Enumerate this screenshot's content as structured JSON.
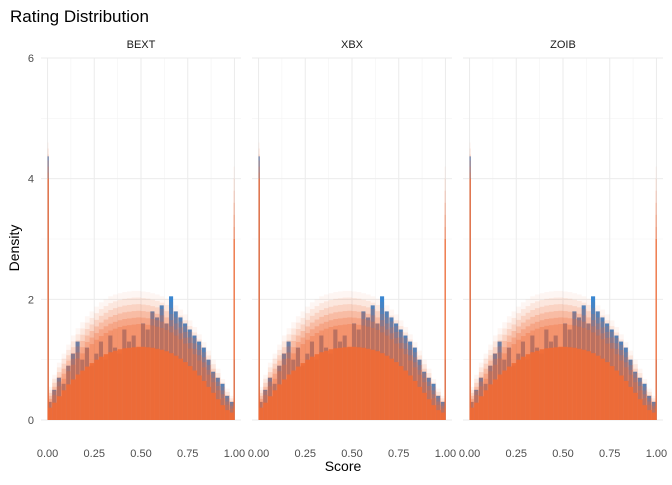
{
  "chart_data": {
    "type": "bar",
    "title": "Rating Distribution",
    "xlabel": "Score",
    "ylabel": "Density",
    "xlim": [
      0,
      1
    ],
    "ylim": [
      0,
      6
    ],
    "x_ticks": [
      "0.00",
      "0.25",
      "0.50",
      "0.75",
      "1.00"
    ],
    "y_ticks": [
      "0",
      "2",
      "4",
      "6"
    ],
    "grid": true,
    "colors": {
      "observed": "#3A86D0",
      "predicted": "#F06A35",
      "predicted_light": "#FFD9C7"
    },
    "panels": [
      {
        "name": "BEXT"
      },
      {
        "name": "XBX"
      },
      {
        "name": "ZOIB"
      }
    ],
    "observed_series": {
      "bin_centers": [
        0.0025,
        0.0125,
        0.0375,
        0.0625,
        0.0875,
        0.1125,
        0.1375,
        0.1625,
        0.1875,
        0.2125,
        0.2375,
        0.2625,
        0.2875,
        0.3125,
        0.3375,
        0.3625,
        0.3875,
        0.4125,
        0.4375,
        0.4625,
        0.4875,
        0.5125,
        0.5375,
        0.5625,
        0.5875,
        0.6125,
        0.6375,
        0.6625,
        0.6875,
        0.7125,
        0.7375,
        0.7625,
        0.7875,
        0.8125,
        0.8375,
        0.8625,
        0.8875,
        0.9125,
        0.9375,
        0.9625,
        0.9875,
        0.9975
      ],
      "density": [
        4.37,
        0.3,
        0.5,
        0.7,
        0.6,
        0.9,
        1.1,
        1.3,
        1.0,
        1.2,
        0.9,
        1.1,
        1.3,
        1.0,
        1.4,
        1.2,
        1.1,
        1.5,
        1.3,
        1.4,
        1.2,
        1.6,
        1.5,
        1.8,
        1.7,
        1.9,
        1.6,
        2.05,
        1.8,
        1.7,
        1.6,
        1.5,
        1.4,
        1.3,
        1.2,
        1.0,
        0.8,
        0.7,
        0.6,
        0.4,
        0.3,
        1.0
      ]
    },
    "predicted_series": {
      "bin_centers": [
        0.0025,
        0.0125,
        0.0375,
        0.0625,
        0.0875,
        0.1125,
        0.1375,
        0.1625,
        0.1875,
        0.2125,
        0.2375,
        0.2625,
        0.2875,
        0.3125,
        0.3375,
        0.3625,
        0.3875,
        0.4125,
        0.4375,
        0.4625,
        0.4875,
        0.5125,
        0.5375,
        0.5625,
        0.5875,
        0.6125,
        0.6375,
        0.6625,
        0.6875,
        0.7125,
        0.7375,
        0.7625,
        0.7875,
        0.8125,
        0.8375,
        0.8625,
        0.8875,
        0.9125,
        0.9375,
        0.9625,
        0.9875,
        0.9975
      ],
      "density_median": [
        4.0,
        0.25,
        0.35,
        0.48,
        0.6,
        0.72,
        0.82,
        0.92,
        1.0,
        1.08,
        1.15,
        1.22,
        1.28,
        1.33,
        1.37,
        1.4,
        1.43,
        1.45,
        1.46,
        1.47,
        1.48,
        1.48,
        1.47,
        1.46,
        1.44,
        1.42,
        1.39,
        1.35,
        1.3,
        1.24,
        1.17,
        1.09,
        1.0,
        0.9,
        0.79,
        0.67,
        0.55,
        0.42,
        0.3,
        0.2,
        0.15,
        3.0
      ],
      "density_max": [
        4.6,
        0.55,
        0.75,
        0.95,
        1.1,
        1.25,
        1.4,
        1.52,
        1.62,
        1.72,
        1.8,
        1.88,
        1.95,
        2.0,
        2.05,
        2.08,
        2.1,
        2.12,
        2.13,
        2.14,
        2.14,
        2.13,
        2.12,
        2.1,
        2.08,
        2.05,
        2.01,
        1.96,
        1.9,
        1.83,
        1.75,
        1.65,
        1.54,
        1.42,
        1.29,
        1.15,
        1.0,
        0.85,
        0.68,
        0.52,
        0.4,
        4.2
      ]
    }
  }
}
